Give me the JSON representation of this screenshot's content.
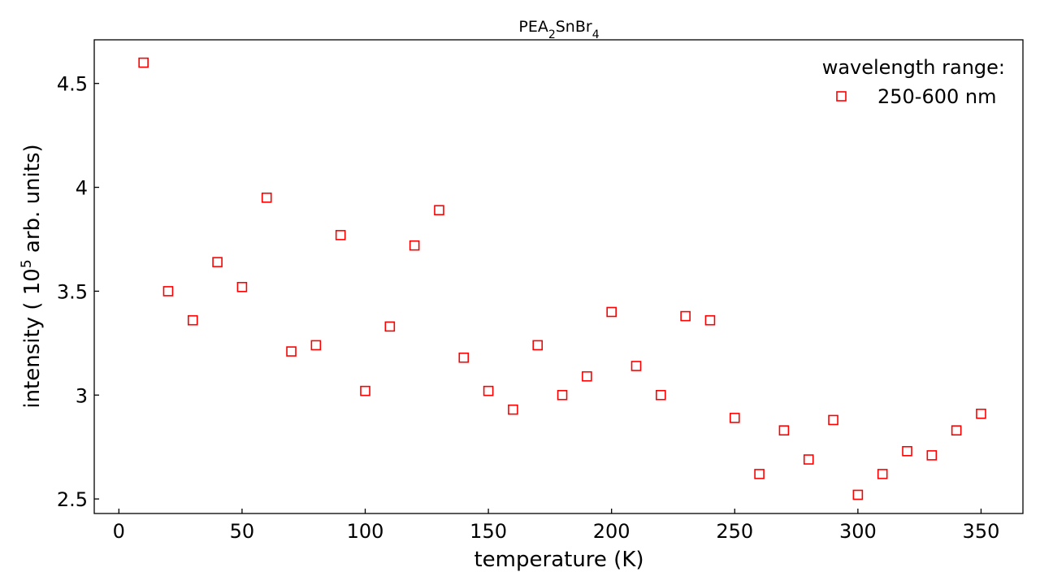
{
  "chart_data": {
    "type": "scatter",
    "title": "PEA2SnBr4",
    "title_parts": {
      "main": "PEA",
      "sub1": "2",
      "mid": "SnBr",
      "sub2": "4"
    },
    "xlabel": "temperature (K)",
    "ylabel_parts": {
      "before": "intensity ( 10",
      "sup": "5",
      "after": " arb. units)"
    },
    "xlim": [
      -10,
      367
    ],
    "ylim": [
      2.43,
      4.71
    ],
    "xticks": [
      0,
      50,
      100,
      150,
      200,
      250,
      300,
      350
    ],
    "xtick_labels": [
      "0",
      "50",
      "100",
      "150",
      "200",
      "250",
      "300",
      "350"
    ],
    "yticks": [
      2.5,
      3,
      3.5,
      4,
      4.5
    ],
    "ytick_labels": [
      "2.5",
      "3",
      "3.5",
      "4",
      "4.5"
    ],
    "grid": false,
    "legend": {
      "title": "wavelength range:",
      "placement": "top-right"
    },
    "series": [
      {
        "name": "250-600 nm",
        "color": "#ff0000",
        "marker": "open-square",
        "x": [
          10,
          20,
          30,
          40,
          50,
          60,
          70,
          80,
          90,
          100,
          110,
          120,
          130,
          140,
          150,
          160,
          170,
          180,
          190,
          200,
          210,
          220,
          230,
          240,
          250,
          260,
          270,
          280,
          290,
          300,
          310,
          320,
          330,
          340,
          350
        ],
        "y": [
          4.6,
          3.5,
          3.36,
          3.64,
          3.52,
          3.95,
          3.21,
          3.24,
          3.77,
          3.02,
          3.33,
          3.72,
          3.89,
          3.18,
          3.02,
          2.93,
          3.24,
          3.0,
          3.09,
          3.4,
          3.14,
          3.0,
          3.38,
          3.36,
          2.89,
          2.62,
          2.83,
          2.69,
          2.88,
          2.52,
          2.62,
          2.73,
          2.71,
          2.83,
          2.91
        ]
      }
    ]
  }
}
